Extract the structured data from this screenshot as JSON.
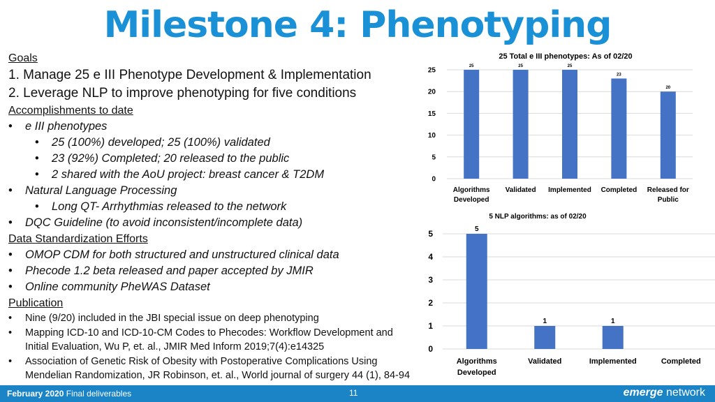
{
  "title": "Milestone 4: Phenotyping",
  "goals": {
    "heading": "Goals",
    "items": [
      "1. Manage 25 e III Phenotype Development & Implementation",
      "2. Leverage NLP to improve phenotyping for five conditions"
    ]
  },
  "accomplishments": {
    "heading": "Accomplishments to date",
    "bullet": "•",
    "e3": "e III phenotypes",
    "e3_subs": [
      "25 (100%) developed; 25 (100%) validated",
      "23 (92%) Completed; 20 released to the public",
      "2 shared with the AoU project: breast cancer & T2DM"
    ],
    "nlp": "Natural Language Processing",
    "nlp_subs": [
      "Long QT- Arrhythmias released to the network"
    ],
    "dqc": "DQC Guideline (to avoid inconsistent/incomplete data)"
  },
  "data_standardization": {
    "heading": "Data Standardization Efforts",
    "items": [
      "OMOP CDM for both structured and unstructured clinical data",
      "Phecode 1.2 beta released and paper accepted by JMIR",
      "Online community PheWAS Dataset"
    ]
  },
  "publication": {
    "heading": "Publication",
    "lines": [
      {
        "bullet": true,
        "text": "Nine (9/20) included in the JBI special issue on deep phenotyping"
      },
      {
        "bullet": true,
        "text": "Mapping ICD-10 and ICD-10-CM Codes to Phecodes: Workflow Development and"
      },
      {
        "bullet": false,
        "text": "Initial Evaluation, Wu P, et. al., JMIR Med Inform 2019;7(4):e14325"
      },
      {
        "bullet": true,
        "text": "Association of Genetic Risk of Obesity with Postoperative Complications Using"
      },
      {
        "bullet": false,
        "text": "Mendelian Randomization, JR Robinson, et. al., World journal of surgery 44 (1), 84-94"
      }
    ]
  },
  "chart_data": [
    {
      "type": "bar",
      "title": "25 Total e III phenotypes:  As of 02/20",
      "categories": [
        [
          "Algorithms",
          "Developed"
        ],
        [
          "Validated"
        ],
        [
          "Implemented"
        ],
        [
          "Completed"
        ],
        [
          "Released for",
          "Public"
        ]
      ],
      "values": [
        25,
        25,
        25,
        23,
        20
      ],
      "ylim": [
        0,
        25
      ],
      "yticks": [
        0,
        5,
        10,
        15,
        20,
        25
      ],
      "grid": true,
      "color": "#4472c4"
    },
    {
      "type": "bar",
      "title": "5 NLP algorithms: as of 02/20",
      "categories": [
        [
          "Algorithms",
          "Developed"
        ],
        [
          "Validated"
        ],
        [
          "Implemented"
        ],
        [
          "Completed"
        ]
      ],
      "values": [
        5,
        1,
        1,
        0
      ],
      "labels": [
        "5",
        "1",
        "1",
        null
      ],
      "ylim": [
        0,
        5
      ],
      "yticks": [
        0,
        1,
        2,
        3,
        4,
        5
      ],
      "grid": true,
      "color": "#4472c4"
    }
  ],
  "footer": {
    "date": "February 2020",
    "text": "Final deliverables",
    "page": "11",
    "brand_em": "emerge",
    "brand_rest": "network"
  }
}
